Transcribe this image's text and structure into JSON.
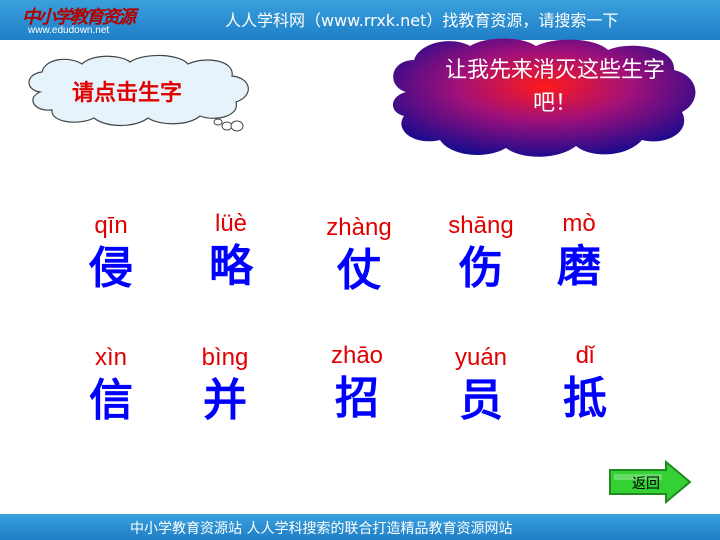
{
  "header": {
    "logo_text": "中小学教育资源",
    "logo_url": "www.edudown.net",
    "slogan": "人人学科网（www.rrxk.net）找教育资源，请搜索一下"
  },
  "prompt_cloud": {
    "label": "请点击生字"
  },
  "challenge_cloud": {
    "line1": "让我先来消灭这些生字",
    "line2": "吧！"
  },
  "characters": [
    {
      "pinyin": "qīn",
      "hanzi": "侵"
    },
    {
      "pinyin": "lüè",
      "hanzi": "略"
    },
    {
      "pinyin": "zhàng",
      "hanzi": "仗"
    },
    {
      "pinyin": "shāng",
      "hanzi": "伤"
    },
    {
      "pinyin": "mò",
      "hanzi": "磨"
    },
    {
      "pinyin": "xìn",
      "hanzi": "信"
    },
    {
      "pinyin": "bìng",
      "hanzi": "并"
    },
    {
      "pinyin": "zhāo",
      "hanzi": "招"
    },
    {
      "pinyin": "yuán",
      "hanzi": "员"
    },
    {
      "pinyin": "dǐ",
      "hanzi": "抵"
    }
  ],
  "back_button": {
    "label": "返回"
  },
  "footer": {
    "text": "中小学教育资源站  人人学科搜索的联合打造精品教育资源网站"
  },
  "colors": {
    "bar": "#2a8fd4",
    "pinyin": "#e00000",
    "hanzi": "#0000ff",
    "back_arrow": "#2fd02f"
  }
}
